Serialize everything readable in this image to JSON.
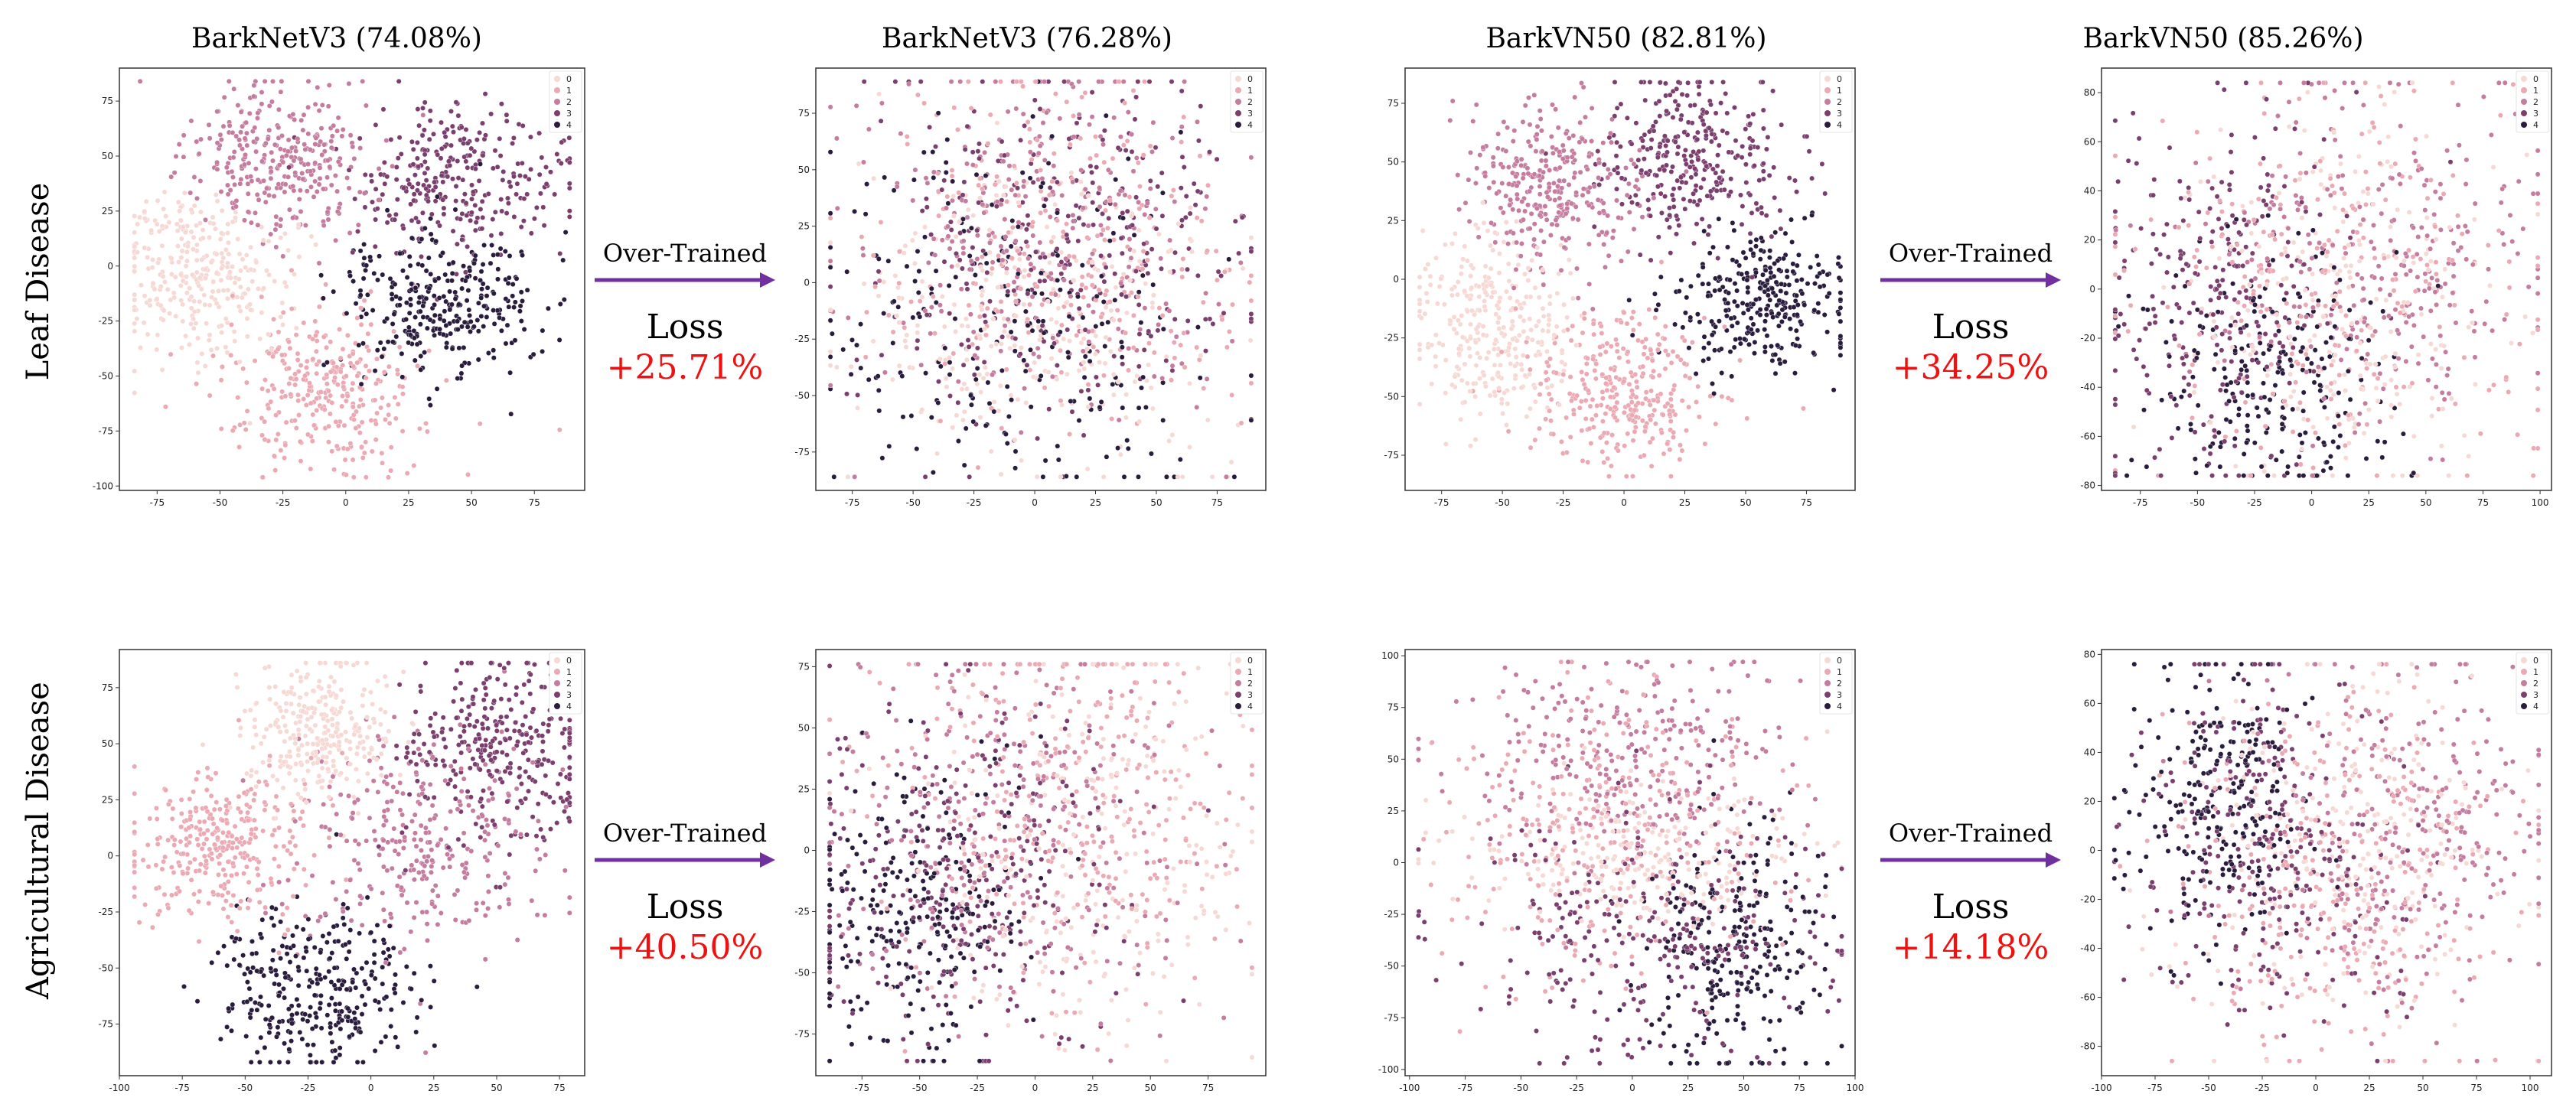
{
  "rows": [
    {
      "label": "Leaf Disease"
    },
    {
      "label": "Agricultural Disease"
    }
  ],
  "connectors": [
    {
      "over_trained": "Over-Trained",
      "loss_label": "Loss",
      "loss_value": "+25.71%"
    },
    {
      "over_trained": "Over-Trained",
      "loss_label": "Loss",
      "loss_value": "+34.25%"
    },
    {
      "over_trained": "Over-Trained",
      "loss_label": "Loss",
      "loss_value": "+40.50%"
    },
    {
      "over_trained": "Over-Trained",
      "loss_label": "Loss",
      "loss_value": "+14.18%"
    }
  ],
  "colors": {
    "class_0": "#f6d9d4",
    "class_1": "#ebaab3",
    "class_2": "#c47c9f",
    "class_3": "#7b3f6e",
    "class_4": "#2a1c3d",
    "arrow": "#7030a0",
    "loss_value": "#f01010"
  },
  "chart_data": [
    {
      "type": "scatter",
      "title": "BarkNetV3 (74.08%)",
      "row": "Leaf Disease",
      "xlim": [
        -90,
        95
      ],
      "ylim": [
        -102,
        90
      ],
      "xticks": [
        -75,
        -50,
        -25,
        0,
        25,
        50,
        75
      ],
      "yticks": [
        -100,
        -75,
        -50,
        -25,
        0,
        25,
        50,
        75
      ],
      "legend": {
        "position": "top-right",
        "entries": [
          "0",
          "1",
          "2",
          "3",
          "4"
        ]
      },
      "clusters": [
        {
          "class": 0,
          "cx": -60,
          "cy": -5,
          "sx": 17,
          "sy": 19,
          "n": 320
        },
        {
          "class": 1,
          "cx": -10,
          "cy": -55,
          "sx": 20,
          "sy": 19,
          "n": 320
        },
        {
          "class": 2,
          "cx": -25,
          "cy": 48,
          "sx": 18,
          "sy": 17,
          "n": 320
        },
        {
          "class": 3,
          "cx": 45,
          "cy": 40,
          "sx": 22,
          "sy": 17,
          "n": 300
        },
        {
          "class": 4,
          "cx": 38,
          "cy": -18,
          "sx": 20,
          "sy": 17,
          "n": 320
        }
      ]
    },
    {
      "type": "scatter",
      "title": "BarkNetV3 (76.28%)",
      "row": "Leaf Disease",
      "xlim": [
        -90,
        95
      ],
      "ylim": [
        -92,
        95
      ],
      "xticks": [
        -75,
        -50,
        -25,
        0,
        25,
        50,
        75
      ],
      "yticks": [
        -75,
        -50,
        -25,
        0,
        25,
        50,
        75
      ],
      "legend": {
        "position": "top-right",
        "entries": [
          "0",
          "1",
          "2",
          "3",
          "4"
        ]
      },
      "clusters": [
        {
          "class": 0,
          "cx": -5,
          "cy": -15,
          "sx": 40,
          "sy": 35,
          "n": 280
        },
        {
          "class": 1,
          "cx": 10,
          "cy": 10,
          "sx": 38,
          "sy": 38,
          "n": 280
        },
        {
          "class": 2,
          "cx": 0,
          "cy": 20,
          "sx": 40,
          "sy": 38,
          "n": 300
        },
        {
          "class": 3,
          "cx": 10,
          "cy": 15,
          "sx": 38,
          "sy": 38,
          "n": 300
        },
        {
          "class": 4,
          "cx": -10,
          "cy": -20,
          "sx": 40,
          "sy": 38,
          "n": 260
        }
      ]
    },
    {
      "type": "scatter",
      "title": "BarkVN50 (82.81%)",
      "row": "Leaf Disease",
      "xlim": [
        -90,
        95
      ],
      "ylim": [
        -90,
        90
      ],
      "xticks": [
        -75,
        -50,
        -25,
        0,
        25,
        50,
        75
      ],
      "yticks": [
        -75,
        -50,
        -25,
        0,
        25,
        50,
        75
      ],
      "legend": {
        "position": "top-right",
        "entries": [
          "0",
          "1",
          "2",
          "3",
          "4"
        ]
      },
      "clusters": [
        {
          "class": 0,
          "cx": -55,
          "cy": -20,
          "sx": 17,
          "sy": 20,
          "n": 320
        },
        {
          "class": 1,
          "cx": 0,
          "cy": -48,
          "sx": 18,
          "sy": 17,
          "n": 320
        },
        {
          "class": 2,
          "cx": -30,
          "cy": 40,
          "sx": 17,
          "sy": 17,
          "n": 320
        },
        {
          "class": 3,
          "cx": 28,
          "cy": 50,
          "sx": 20,
          "sy": 18,
          "n": 320
        },
        {
          "class": 4,
          "cx": 55,
          "cy": -8,
          "sx": 18,
          "sy": 15,
          "n": 300
        }
      ]
    },
    {
      "type": "scatter",
      "title": "BarkVN50 (85.26%)",
      "row": "Leaf Disease",
      "xlim": [
        -92,
        105
      ],
      "ylim": [
        -82,
        90
      ],
      "xticks": [
        -75,
        -50,
        -25,
        0,
        25,
        50,
        75,
        100
      ],
      "yticks": [
        -80,
        -60,
        -40,
        -20,
        0,
        20,
        40,
        60,
        80
      ],
      "legend": {
        "position": "top-right",
        "entries": [
          "0",
          "1",
          "2",
          "3",
          "4"
        ]
      },
      "clusters": [
        {
          "class": 0,
          "cx": 15,
          "cy": -5,
          "sx": 35,
          "sy": 35,
          "n": 240
        },
        {
          "class": 1,
          "cx": 0,
          "cy": 0,
          "sx": 45,
          "sy": 40,
          "n": 260
        },
        {
          "class": 2,
          "cx": 30,
          "cy": 10,
          "sx": 40,
          "sy": 38,
          "n": 280
        },
        {
          "class": 3,
          "cx": -40,
          "cy": 0,
          "sx": 30,
          "sy": 35,
          "n": 260
        },
        {
          "class": 4,
          "cx": -15,
          "cy": -35,
          "sx": 25,
          "sy": 25,
          "n": 240
        }
      ]
    },
    {
      "type": "scatter",
      "title": "",
      "row": "Agricultural Disease",
      "xlim": [
        -100,
        85
      ],
      "ylim": [
        -98,
        92
      ],
      "xticks": [
        -100,
        -75,
        -50,
        -25,
        0,
        25,
        50,
        75
      ],
      "yticks": [
        -75,
        -50,
        -25,
        0,
        25,
        50,
        75
      ],
      "legend": {
        "position": "top-right",
        "entries": [
          "0",
          "1",
          "2",
          "3",
          "4"
        ]
      },
      "clusters": [
        {
          "class": 0,
          "cx": -20,
          "cy": 55,
          "sx": 15,
          "sy": 17,
          "n": 300
        },
        {
          "class": 1,
          "cx": -60,
          "cy": 5,
          "sx": 19,
          "sy": 17,
          "n": 320
        },
        {
          "class": 2,
          "cx": 20,
          "cy": 5,
          "sx": 25,
          "sy": 25,
          "n": 300
        },
        {
          "class": 3,
          "cx": 50,
          "cy": 45,
          "sx": 20,
          "sy": 20,
          "n": 320
        },
        {
          "class": 4,
          "cx": -20,
          "cy": -60,
          "sx": 20,
          "sy": 18,
          "n": 320
        }
      ]
    },
    {
      "type": "scatter",
      "title": "",
      "row": "Agricultural Disease",
      "xlim": [
        -95,
        100
      ],
      "ylim": [
        -92,
        82
      ],
      "xticks": [
        -75,
        -50,
        -25,
        0,
        25,
        50,
        75
      ],
      "yticks": [
        -75,
        -50,
        -25,
        0,
        25,
        50,
        75
      ],
      "legend": {
        "position": "top-right",
        "entries": [
          "0",
          "1",
          "2",
          "3",
          "4"
        ]
      },
      "clusters": [
        {
          "class": 0,
          "cx": 25,
          "cy": 0,
          "sx": 38,
          "sy": 38,
          "n": 260
        },
        {
          "class": 1,
          "cx": 20,
          "cy": 20,
          "sx": 40,
          "sy": 40,
          "n": 290
        },
        {
          "class": 2,
          "cx": -10,
          "cy": 10,
          "sx": 40,
          "sy": 40,
          "n": 290
        },
        {
          "class": 3,
          "cx": -30,
          "cy": -10,
          "sx": 35,
          "sy": 38,
          "n": 290
        },
        {
          "class": 4,
          "cx": -50,
          "cy": -25,
          "sx": 25,
          "sy": 30,
          "n": 260
        }
      ]
    },
    {
      "type": "scatter",
      "title": "",
      "row": "Agricultural Disease",
      "xlim": [
        -102,
        100
      ],
      "ylim": [
        -103,
        103
      ],
      "xticks": [
        -100,
        -75,
        -50,
        -25,
        0,
        25,
        50,
        75,
        100
      ],
      "yticks": [
        -100,
        -75,
        -50,
        -25,
        0,
        25,
        50,
        75,
        100
      ],
      "legend": {
        "position": "top-right",
        "entries": [
          "0",
          "1",
          "2",
          "3",
          "4"
        ]
      },
      "clusters": [
        {
          "class": 0,
          "cx": 0,
          "cy": 5,
          "sx": 40,
          "sy": 18,
          "n": 240
        },
        {
          "class": 1,
          "cx": -10,
          "cy": 15,
          "sx": 40,
          "sy": 35,
          "n": 280
        },
        {
          "class": 2,
          "cx": 0,
          "cy": 50,
          "sx": 35,
          "sy": 25,
          "n": 280
        },
        {
          "class": 3,
          "cx": 10,
          "cy": -35,
          "sx": 40,
          "sy": 30,
          "n": 290
        },
        {
          "class": 4,
          "cx": 45,
          "cy": -40,
          "sx": 20,
          "sy": 30,
          "n": 260
        }
      ]
    },
    {
      "type": "scatter",
      "title": "",
      "row": "Agricultural Disease",
      "xlim": [
        -100,
        110
      ],
      "ylim": [
        -92,
        82
      ],
      "xticks": [
        -100,
        -75,
        -50,
        -25,
        0,
        25,
        50,
        75,
        100
      ],
      "yticks": [
        -80,
        -60,
        -40,
        -20,
        0,
        20,
        40,
        60,
        80
      ],
      "legend": {
        "position": "top-right",
        "entries": [
          "0",
          "1",
          "2",
          "3",
          "4"
        ]
      },
      "clusters": [
        {
          "class": 0,
          "cx": 20,
          "cy": 0,
          "sx": 35,
          "sy": 35,
          "n": 260
        },
        {
          "class": 1,
          "cx": 10,
          "cy": -10,
          "sx": 40,
          "sy": 38,
          "n": 280
        },
        {
          "class": 2,
          "cx": 40,
          "cy": 10,
          "sx": 35,
          "sy": 35,
          "n": 280
        },
        {
          "class": 3,
          "cx": -20,
          "cy": 0,
          "sx": 30,
          "sy": 35,
          "n": 280
        },
        {
          "class": 4,
          "cx": -45,
          "cy": 20,
          "sx": 22,
          "sy": 30,
          "n": 260
        }
      ]
    }
  ]
}
